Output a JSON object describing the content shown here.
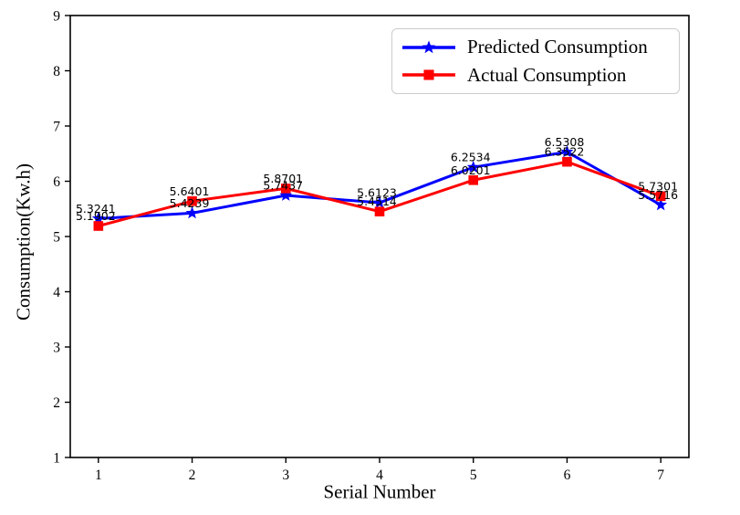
{
  "chart_data": {
    "type": "line",
    "x": [
      1,
      2,
      3,
      4,
      5,
      6,
      7
    ],
    "xlabel": "Serial Number",
    "ylabel": "Consumption(Kw.h)",
    "xlim": [
      0.7,
      7.3
    ],
    "ylim": [
      1,
      9
    ],
    "xticks": [
      "1",
      "2",
      "3",
      "4",
      "5",
      "6",
      "7"
    ],
    "yticks": [
      "1",
      "2",
      "3",
      "4",
      "5",
      "6",
      "7",
      "8",
      "9"
    ],
    "grid": false,
    "legend": {
      "position": "upper right",
      "border_color": "#cccccc"
    },
    "series": [
      {
        "name": "Predicted Consumption",
        "color": "#0000ff",
        "marker": "star",
        "values": [
          5.3241,
          5.4239,
          5.7437,
          5.6123,
          6.2534,
          6.5308,
          5.5716
        ],
        "point_labels": [
          "5.3241",
          "5.4239",
          "5.7437",
          "5.6123",
          "6.2534",
          "6.5308",
          "5.5716"
        ]
      },
      {
        "name": "Actual Consumption",
        "color": "#ff0000",
        "marker": "square",
        "values": [
          5.1902,
          5.6401,
          5.8701,
          5.4514,
          6.0201,
          6.3522,
          5.7301
        ],
        "point_labels": [
          "5.1902",
          "5.6401",
          "5.8701",
          "5.4514",
          "6.0201",
          "6.3522",
          "5.7301"
        ]
      }
    ],
    "annotation_color": "#000000",
    "axis_color": "#000000"
  }
}
